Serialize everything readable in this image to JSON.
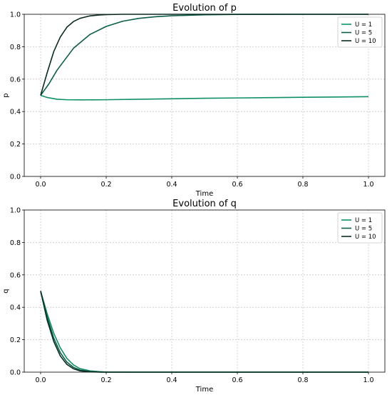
{
  "chart_data": [
    {
      "type": "line",
      "title": "Evolution of p",
      "xlabel": "Time",
      "ylabel": "p",
      "xlim": [
        -0.05,
        1.05
      ],
      "ylim": [
        0.0,
        1.0
      ],
      "xticks": [
        "0.0",
        "0.2",
        "0.4",
        "0.6",
        "0.8",
        "1.0"
      ],
      "yticks": [
        "0.0",
        "0.2",
        "0.4",
        "0.6",
        "0.8",
        "1.0"
      ],
      "grid": true,
      "legend": "top-right",
      "series": [
        {
          "name": "U = 1",
          "color": "#0f8f67",
          "x": [
            0,
            0.02,
            0.05,
            0.08,
            0.12,
            0.2,
            0.3,
            0.4,
            0.5,
            0.6,
            0.7,
            0.8,
            0.9,
            1.0
          ],
          "y": [
            0.5,
            0.487,
            0.476,
            0.473,
            0.472,
            0.473,
            0.476,
            0.479,
            0.482,
            0.484,
            0.486,
            0.488,
            0.49,
            0.492
          ]
        },
        {
          "name": "U = 5",
          "color": "#0c5e48",
          "x": [
            0,
            0.025,
            0.05,
            0.1,
            0.15,
            0.2,
            0.25,
            0.3,
            0.35,
            0.4,
            0.5,
            0.6,
            0.8,
            1.0
          ],
          "y": [
            0.5,
            0.57,
            0.655,
            0.79,
            0.875,
            0.925,
            0.957,
            0.975,
            0.985,
            0.991,
            0.997,
            0.999,
            1.0,
            1.0
          ]
        },
        {
          "name": "U = 10",
          "color": "#0b2a22",
          "x": [
            0,
            0.02,
            0.04,
            0.06,
            0.08,
            0.1,
            0.12,
            0.15,
            0.18,
            0.2,
            0.25,
            0.3,
            0.5,
            1.0
          ],
          "y": [
            0.5,
            0.64,
            0.77,
            0.86,
            0.92,
            0.955,
            0.975,
            0.99,
            0.996,
            0.998,
            1.0,
            1.0,
            1.0,
            1.0
          ]
        }
      ]
    },
    {
      "type": "line",
      "title": "Evolution of q",
      "xlabel": "Time",
      "ylabel": "q",
      "xlim": [
        -0.05,
        1.05
      ],
      "ylim": [
        0.0,
        1.0
      ],
      "xticks": [
        "0.0",
        "0.2",
        "0.4",
        "0.6",
        "0.8",
        "1.0"
      ],
      "yticks": [
        "0.0",
        "0.2",
        "0.4",
        "0.6",
        "0.8",
        "1.0"
      ],
      "grid": true,
      "legend": "top-right",
      "series": [
        {
          "name": "U = 1",
          "color": "#0f8f67",
          "x": [
            0,
            0.02,
            0.04,
            0.06,
            0.08,
            0.1,
            0.12,
            0.15,
            0.18,
            0.2,
            0.3,
            1.0
          ],
          "y": [
            0.5,
            0.36,
            0.24,
            0.15,
            0.085,
            0.045,
            0.022,
            0.008,
            0.003,
            0.001,
            0.0,
            0.0
          ]
        },
        {
          "name": "U = 5",
          "color": "#0c5e48",
          "x": [
            0,
            0.02,
            0.04,
            0.06,
            0.08,
            0.1,
            0.12,
            0.15,
            0.18,
            0.2,
            0.3,
            1.0
          ],
          "y": [
            0.5,
            0.34,
            0.21,
            0.12,
            0.062,
            0.03,
            0.013,
            0.004,
            0.001,
            0.0,
            0.0,
            0.0
          ]
        },
        {
          "name": "U = 10",
          "color": "#0b2a22",
          "x": [
            0,
            0.02,
            0.04,
            0.06,
            0.08,
            0.1,
            0.12,
            0.15,
            0.18,
            0.2,
            0.3,
            1.0
          ],
          "y": [
            0.5,
            0.32,
            0.19,
            0.1,
            0.048,
            0.021,
            0.008,
            0.002,
            0.0,
            0.0,
            0.0,
            0.0
          ]
        }
      ]
    }
  ]
}
